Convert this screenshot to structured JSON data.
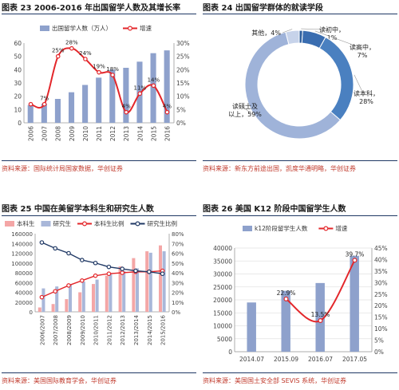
{
  "panels": {
    "p1": {
      "title": "图表 23 2006-2016 年出国留学人数及其增长率",
      "source": "资料来源：国际统计局国家数据，华创证券"
    },
    "p2": {
      "title": "图表 24 出国留学群体的就读学段",
      "source": "资料来源：新东方前途出国，凯度华通明略，华创证券"
    },
    "p3": {
      "title": "图表 25 中国在美留学本科生和研究生人数",
      "source": "资料来源：美国国际教育学会，华创证券"
    },
    "p4": {
      "title": "图表 26 美国 K12 阶段中国留学生人数",
      "source": "资料来源：美国国土安全部 SEVIS 系统，华创证券"
    }
  },
  "chart_data": [
    {
      "type": "bar",
      "categories": [
        "2006",
        "2007",
        "2008",
        "2009",
        "2010",
        "2011",
        "2012",
        "2013",
        "2014",
        "2015",
        "2016"
      ],
      "series": [
        {
          "name": "出国留学人数（万人）",
          "type": "bar",
          "axis": "left",
          "color": "#8ea1cc",
          "values": [
            13.4,
            14.4,
            18.0,
            23.0,
            28.5,
            34.0,
            40.0,
            41.4,
            46.0,
            52.4,
            54.5
          ]
        },
        {
          "name": "增速",
          "type": "line",
          "axis": "right",
          "color": "#e3262a",
          "values": [
            0.07,
            0.07,
            0.25,
            0.28,
            0.24,
            0.19,
            0.18,
            0.04,
            0.11,
            0.14,
            0.04
          ],
          "labels": [
            "",
            "7%",
            "25%",
            "28%",
            "24%",
            "19%",
            "18%",
            "4%",
            "11%",
            "14%",
            "4%"
          ]
        }
      ],
      "yleft": {
        "min": 0,
        "max": 60,
        "ticks": [
          "0",
          "10",
          "20",
          "30",
          "40",
          "50",
          "60"
        ]
      },
      "yright": {
        "min": 0,
        "max": 0.3,
        "ticks": [
          "0%",
          "5%",
          "10%",
          "15%",
          "20%",
          "25%",
          "30%"
        ]
      },
      "grid": false,
      "legend": "top"
    },
    {
      "type": "pie",
      "donut": true,
      "slices": [
        {
          "label": "读初中，1%",
          "value": 1,
          "color": "#2e5f9e"
        },
        {
          "label": "读高中，7%",
          "value": 7,
          "color": "#3a6db0"
        },
        {
          "label": "读本科，28%",
          "value": 28,
          "color": "#4a80c0"
        },
        {
          "label": "读硕士及以上，59%",
          "value": 59,
          "color": "#9fb3d9"
        },
        {
          "label": "其他，4%",
          "value": 4,
          "color": "#c7d3ea"
        }
      ]
    },
    {
      "type": "bar",
      "categories": [
        "2006/2007",
        "2007/2008",
        "2008/2009",
        "2009/2010",
        "2010/2011",
        "2011/2012",
        "2012/2013",
        "2013/2014",
        "2014/2015",
        "2015/2016"
      ],
      "series": [
        {
          "name": "本科生",
          "type": "bar",
          "axis": "left",
          "color": "#f4a6a6",
          "values": [
            9000,
            16000,
            26000,
            40000,
            57000,
            74000,
            93000,
            110000,
            124000,
            136000
          ]
        },
        {
          "name": "研究生",
          "type": "bar",
          "axis": "left",
          "color": "#a9b7d9",
          "values": [
            48000,
            52000,
            57000,
            62000,
            66000,
            78000,
            84000,
            89000,
            121000,
            124000
          ]
        },
        {
          "name": "本科生比例",
          "type": "line",
          "axis": "right",
          "color": "#e3262a",
          "values": [
            0.15,
            0.21,
            0.27,
            0.32,
            0.37,
            0.39,
            0.4,
            0.41,
            0.41,
            0.42
          ]
        },
        {
          "name": "研究生比例",
          "type": "line",
          "axis": "right",
          "color": "#1f3864",
          "values": [
            0.71,
            0.65,
            0.6,
            0.53,
            0.5,
            0.46,
            0.44,
            0.42,
            0.41,
            0.39
          ]
        }
      ],
      "yleft": {
        "min": 0,
        "max": 160000,
        "ticks": [
          "0",
          "20000",
          "40000",
          "60000",
          "80000",
          "100000",
          "120000",
          "140000",
          "160000"
        ]
      },
      "yright": {
        "min": 0,
        "max": 0.8,
        "ticks": [
          "0%",
          "10%",
          "20%",
          "30%",
          "40%",
          "50%",
          "60%",
          "70%",
          "80%"
        ]
      },
      "grid": false,
      "legend": "top"
    },
    {
      "type": "bar",
      "categories": [
        "2014.07",
        "2015.09",
        "2016.07",
        "2017.05"
      ],
      "series": [
        {
          "name": "k12阶段留学生人数",
          "type": "bar",
          "axis": "left",
          "color": "#8ea1cc",
          "values": [
            19000,
            23500,
            26500,
            37000
          ]
        },
        {
          "name": "增速",
          "type": "line",
          "axis": "right",
          "color": "#e3262a",
          "values": [
            null,
            0.229,
            0.135,
            0.397
          ],
          "labels": [
            "",
            "22.9%",
            "13.5%",
            "39.7%"
          ]
        }
      ],
      "yleft": {
        "min": 0,
        "max": 40000,
        "ticks": [
          "0",
          "5000",
          "10000",
          "15000",
          "20000",
          "25000",
          "30000",
          "35000",
          "40000"
        ]
      },
      "yright": {
        "min": 0,
        "max": 0.45,
        "ticks": [
          "0%",
          "5%",
          "10%",
          "15%",
          "20%",
          "25%",
          "30%",
          "35%",
          "40%",
          "45%"
        ]
      },
      "grid": true,
      "legend": "top"
    }
  ]
}
